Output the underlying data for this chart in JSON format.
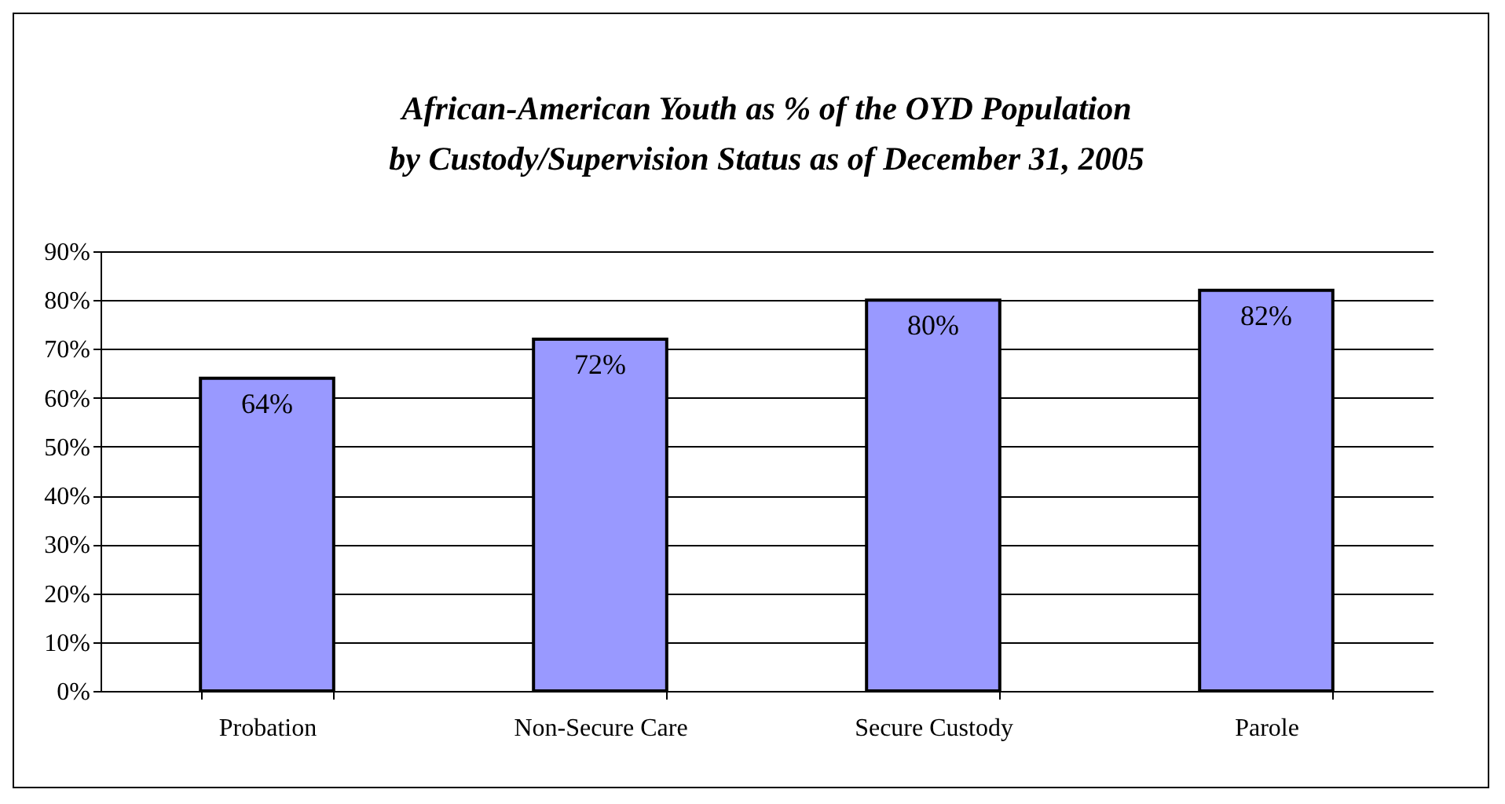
{
  "chart_data": {
    "type": "bar",
    "title": "African-American Youth as % of the OYD Population\nby Custody/Supervision Status as of December 31, 2005",
    "categories": [
      "Probation",
      "Non-Secure Care",
      "Secure Custody",
      "Parole"
    ],
    "values": [
      64,
      72,
      80,
      82
    ],
    "color": "#9999ff",
    "value_labels": [
      "64%",
      "72%",
      "80%",
      "82%"
    ],
    "ylim": [
      0,
      90
    ],
    "yticks": [
      {
        "value": 0,
        "label": "0%"
      },
      {
        "value": 10,
        "label": "10%"
      },
      {
        "value": 20,
        "label": "20%"
      },
      {
        "value": 30,
        "label": "30%"
      },
      {
        "value": 40,
        "label": "40%"
      },
      {
        "value": 50,
        "label": "50%"
      },
      {
        "value": 60,
        "label": "60%"
      },
      {
        "value": 70,
        "label": "70%"
      },
      {
        "value": 80,
        "label": "80%"
      },
      {
        "value": 90,
        "label": "90%"
      }
    ],
    "grid": "y"
  }
}
